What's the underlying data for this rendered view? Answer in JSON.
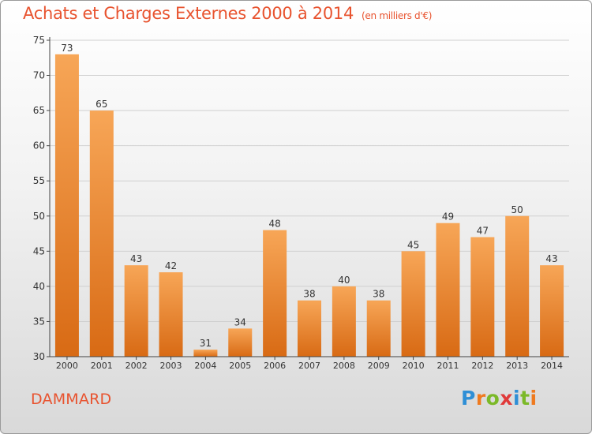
{
  "title": "Achats et Charges Externes 2000 à 2014",
  "subtitle": "(en milliers d'€)",
  "location": "DAMMARD",
  "logo": {
    "text": "Proxiti",
    "letter_colors": [
      "#2f8fd6",
      "#ef7a1f",
      "#7bb928",
      "#e03a3a",
      "#2f8fd6",
      "#7bb928",
      "#ef7a1f"
    ]
  },
  "colors": {
    "title": "#e8532f",
    "bar_light": "#f7a657",
    "bar_dark": "#d86a14",
    "grid": "#d0d0d0",
    "axis": "#444444"
  },
  "chart_data": {
    "type": "bar",
    "title": "Achats et Charges Externes 2000 à 2014",
    "subtitle": "(en milliers d'€)",
    "xlabel": "",
    "ylabel": "",
    "categories": [
      "2000",
      "2001",
      "2002",
      "2003",
      "2004",
      "2005",
      "2006",
      "2007",
      "2008",
      "2009",
      "2010",
      "2011",
      "2012",
      "2013",
      "2014"
    ],
    "values": [
      73,
      65,
      43,
      42,
      31,
      34,
      48,
      38,
      40,
      38,
      45,
      49,
      47,
      50,
      43
    ],
    "ylim": [
      30,
      75
    ],
    "yticks": [
      30,
      35,
      40,
      45,
      50,
      55,
      60,
      65,
      70,
      75
    ],
    "grid": true,
    "data_labels": true
  }
}
